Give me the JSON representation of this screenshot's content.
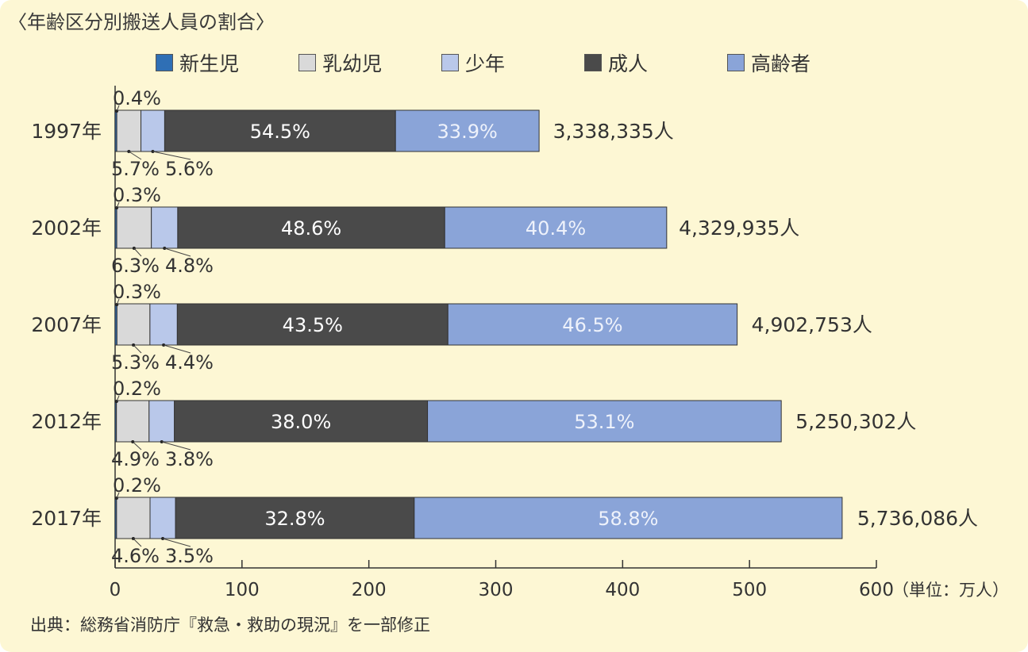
{
  "title": "〈年齢区分別搬送人員の割合〉",
  "source": "出典：総務省消防庁『救急・救助の現況』を一部修正",
  "unit_label": "（単位：万人）",
  "colors": {
    "newborn": "#2f6fb5",
    "infant": "#d9d9d9",
    "youth": "#b9c8ea",
    "adult": "#4a4a4a",
    "elderly": "#8aa4d8",
    "background": "#fdf7d4"
  },
  "chart_data": {
    "type": "bar",
    "orientation": "horizontal",
    "stacked": true,
    "title": "〈年齢区分別搬送人員の割合〉",
    "xlim": [
      0,
      600
    ],
    "x_ticks": [
      "0",
      "100",
      "200",
      "300",
      "400",
      "500",
      "600"
    ],
    "categories": [
      "1997年",
      "2002年",
      "2007年",
      "2012年",
      "2017年"
    ],
    "totals": [
      333.8335,
      432.9935,
      490.2753,
      525.0302,
      573.6086
    ],
    "total_labels": [
      "3,338,335人",
      "4,329,935人",
      "4,902,753人",
      "5,250,302人",
      "5,736,086人"
    ],
    "series": [
      {
        "name": "新生児",
        "percent": [
          0.4,
          0.3,
          0.3,
          0.2,
          0.2
        ],
        "labels": [
          "0.4%",
          "0.3%",
          "0.3%",
          "0.2%",
          "0.2%"
        ]
      },
      {
        "name": "乳幼児",
        "percent": [
          5.7,
          6.3,
          5.3,
          4.9,
          4.6
        ],
        "labels": [
          "5.7%",
          "6.3%",
          "5.3%",
          "4.9%",
          "4.6%"
        ]
      },
      {
        "name": "少年",
        "percent": [
          5.6,
          4.8,
          4.4,
          3.8,
          3.5
        ],
        "labels": [
          "5.6%",
          "4.8%",
          "4.4%",
          "3.8%",
          "3.5%"
        ]
      },
      {
        "name": "成人",
        "percent": [
          54.5,
          48.6,
          43.5,
          38.0,
          32.8
        ],
        "labels": [
          "54.5%",
          "48.6%",
          "43.5%",
          "38.0%",
          "32.8%"
        ]
      },
      {
        "name": "高齢者",
        "percent": [
          33.9,
          40.4,
          46.5,
          53.1,
          58.8
        ],
        "labels": [
          "33.9%",
          "40.4%",
          "46.5%",
          "53.1%",
          "58.8%"
        ]
      }
    ],
    "legend_position": "top",
    "grid": false
  }
}
